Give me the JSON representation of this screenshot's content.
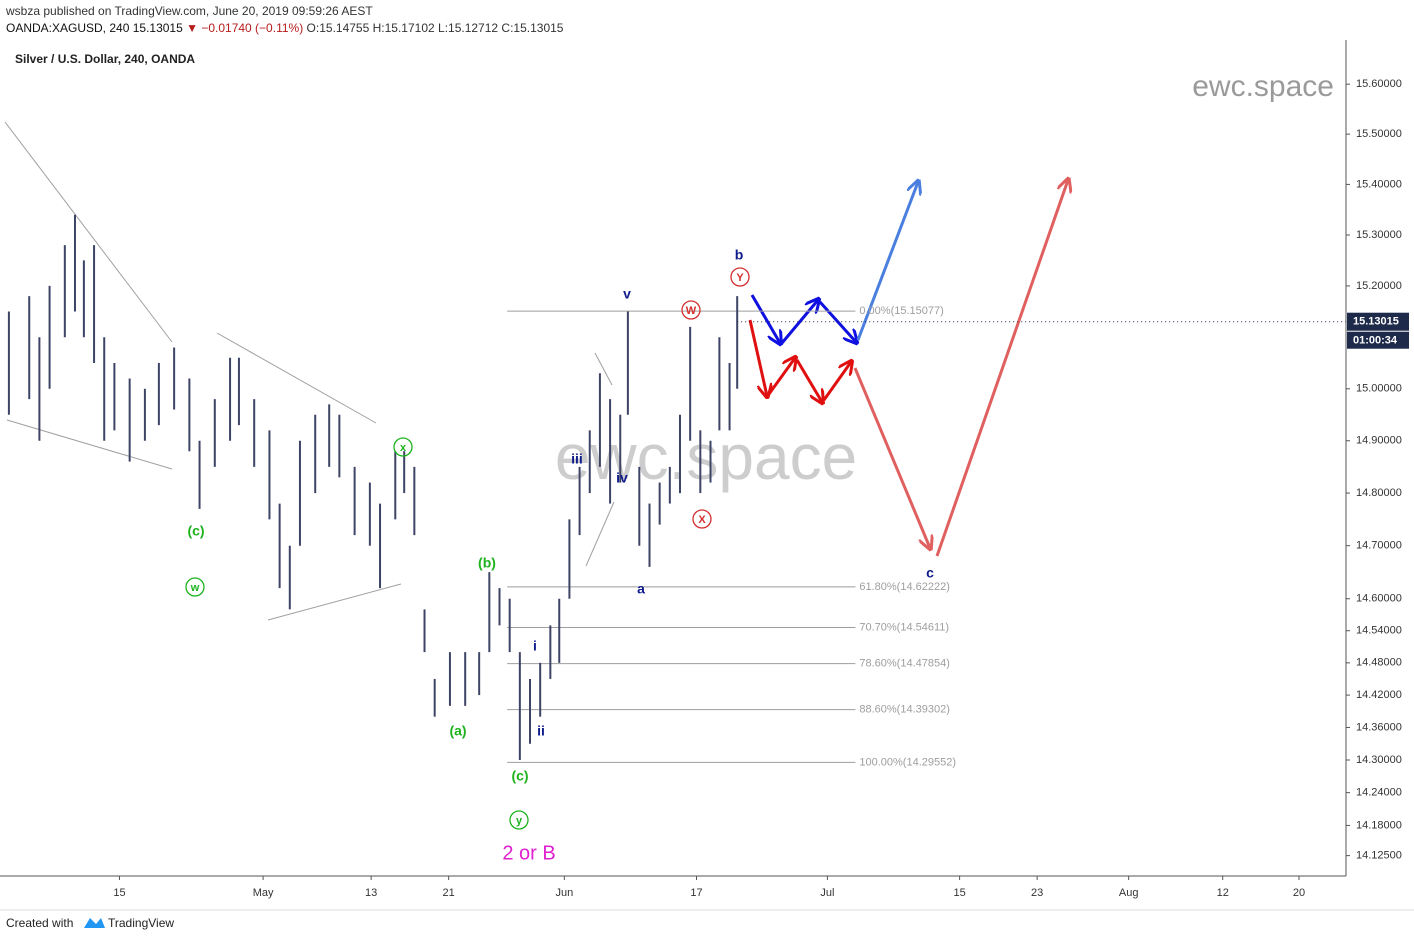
{
  "header": {
    "publisher": "wsbza published on TradingView.com, June 20, 2019 09:59:26 AEST",
    "symbol": "OANDA:XAGUSD, 240",
    "last": "15.13015",
    "change": "▼ −0.01740 (−0.11%)",
    "open": "O:15.14755",
    "high": "H:15.17102",
    "low": "L:15.12712",
    "close": "C:15.13015"
  },
  "footer": {
    "created": "Created with",
    "brand": "TradingView"
  },
  "chart_data": {
    "type": "range_bar",
    "title": "Silver / U.S. Dollar, 240, OANDA",
    "watermark": "ewc.space",
    "log_scale": true,
    "xlim": [
      -9.4,
      96.5
    ],
    "ylim": [
      14.088,
      15.689
    ],
    "xticks": [
      {
        "value": 0,
        "label": "15"
      },
      {
        "value": 11.3,
        "label": "May"
      },
      {
        "value": 19.8,
        "label": "13"
      },
      {
        "value": 25.9,
        "label": "21"
      },
      {
        "value": 35,
        "label": "Jun"
      },
      {
        "value": 45.4,
        "label": "17"
      },
      {
        "value": 55.7,
        "label": "Jul"
      },
      {
        "value": 66.1,
        "label": "15"
      },
      {
        "value": 72.2,
        "label": "23"
      },
      {
        "value": 79.4,
        "label": "Aug"
      },
      {
        "value": 86.8,
        "label": "12"
      },
      {
        "value": 92.8,
        "label": "20"
      }
    ],
    "yticks": [
      {
        "value": 15.6,
        "label": "15.60000"
      },
      {
        "value": 15.5,
        "label": "15.50000"
      },
      {
        "value": 15.4,
        "label": "15.40000"
      },
      {
        "value": 15.3,
        "label": "15.30000"
      },
      {
        "value": 15.2,
        "label": "15.20000"
      },
      {
        "value": 15.0,
        "label": "15.00000"
      },
      {
        "value": 14.9,
        "label": "14.90000"
      },
      {
        "value": 14.8,
        "label": "14.80000"
      },
      {
        "value": 14.7,
        "label": "14.70000"
      },
      {
        "value": 14.6,
        "label": "14.60000"
      },
      {
        "value": 14.54,
        "label": "14.54000"
      },
      {
        "value": 14.48,
        "label": "14.48000"
      },
      {
        "value": 14.42,
        "label": "14.42000"
      },
      {
        "value": 14.36,
        "label": "14.36000"
      },
      {
        "value": 14.3,
        "label": "14.30000"
      },
      {
        "value": 14.24,
        "label": "14.24000"
      },
      {
        "value": 14.18,
        "label": "14.18000"
      },
      {
        "value": 14.125,
        "label": "14.12500"
      }
    ],
    "last_price": 15.13015,
    "countdown": "01:00:34",
    "bars": {
      "color": "#3e4466",
      "x": [
        -8.7,
        -7.1,
        -6.3,
        -5.5,
        -4.3,
        -3.5,
        -2.8,
        -2.0,
        -1.2,
        -0.4,
        0.8,
        2.0,
        3.1,
        4.3,
        5.5,
        6.3,
        7.5,
        8.7,
        9.4,
        10.6,
        11.8,
        12.6,
        13.4,
        14.2,
        15.4,
        16.5,
        17.3,
        18.5,
        19.7,
        20.5,
        21.7,
        22.4,
        23.2,
        24.0,
        24.8,
        26.0,
        27.2,
        28.3,
        29.1,
        29.9,
        30.7,
        31.5,
        32.3,
        33.1,
        33.9,
        34.6,
        35.4,
        36.2,
        37.0,
        37.8,
        38.6,
        39.4,
        40.0,
        40.9,
        41.7,
        42.5,
        43.3,
        44.1,
        44.9,
        45.7,
        46.5,
        47.2,
        48.0,
        48.6
      ],
      "high": [
        15.15,
        15.18,
        15.1,
        15.2,
        15.28,
        15.34,
        15.25,
        15.28,
        15.1,
        15.05,
        15.02,
        15.0,
        15.05,
        15.08,
        15.02,
        14.9,
        14.98,
        15.06,
        15.06,
        14.98,
        14.92,
        14.78,
        14.7,
        14.9,
        14.95,
        14.97,
        14.95,
        14.85,
        14.82,
        14.78,
        14.88,
        14.88,
        14.85,
        14.58,
        14.45,
        14.5,
        14.5,
        14.5,
        14.65,
        14.62,
        14.6,
        14.5,
        14.45,
        14.48,
        14.55,
        14.6,
        14.75,
        14.85,
        14.92,
        15.03,
        14.98,
        14.95,
        15.15,
        14.85,
        14.78,
        14.82,
        14.85,
        14.95,
        15.12,
        14.92,
        14.9,
        15.1,
        15.05,
        15.18
      ],
      "low": [
        14.95,
        14.98,
        14.9,
        15.0,
        15.1,
        15.15,
        15.1,
        15.05,
        14.9,
        14.92,
        14.86,
        14.9,
        14.93,
        14.96,
        14.88,
        14.77,
        14.85,
        14.9,
        14.93,
        14.85,
        14.75,
        14.62,
        14.58,
        14.7,
        14.8,
        14.85,
        14.83,
        14.72,
        14.7,
        14.62,
        14.75,
        14.8,
        14.72,
        14.5,
        14.38,
        14.4,
        14.4,
        14.42,
        14.5,
        14.55,
        14.5,
        14.3,
        14.33,
        14.38,
        14.45,
        14.48,
        14.6,
        14.72,
        14.8,
        14.85,
        14.78,
        14.82,
        14.95,
        14.7,
        14.66,
        14.74,
        14.78,
        14.8,
        14.9,
        14.8,
        14.82,
        14.92,
        14.92,
        15.0
      ]
    },
    "fib_levels": {
      "color": "#9e9e9e",
      "x": [
        30.5,
        57.9
      ],
      "levels": [
        {
          "value": 15.15077,
          "label": "0.00%(15.15077)"
        },
        {
          "value": 14.62222,
          "label": "61.80%(14.62222)"
        },
        {
          "value": 14.54611,
          "label": "70.70%(14.54611)"
        },
        {
          "value": 14.47854,
          "label": "78.60%(14.47854)"
        },
        {
          "value": 14.39302,
          "label": "88.60%(14.39302)"
        },
        {
          "value": 14.29552,
          "label": "100.00%(14.29552)"
        }
      ]
    },
    "annotations": [
      {
        "text": "b",
        "color": "#101c8c"
      },
      {
        "text": "Y",
        "color": "#d32f2f",
        "circled": true
      },
      {
        "text": "v",
        "color": "#101c8c"
      },
      {
        "text": "W",
        "color": "#d32f2f",
        "circled": true
      },
      {
        "text": "iii",
        "color": "#101c8c"
      },
      {
        "text": "iv",
        "color": "#101c8c"
      },
      {
        "text": "X",
        "color": "#d32f2f",
        "circled": true
      },
      {
        "text": "a",
        "color": "#101c8c"
      },
      {
        "text": "c",
        "color": "#101c8c"
      },
      {
        "text": "x",
        "color": "#1db31d",
        "circled": true
      },
      {
        "text": "(c)",
        "color": "#1db31d"
      },
      {
        "text": "w",
        "color": "#1db31d",
        "circled": true
      },
      {
        "text": "(b)",
        "color": "#1db31d"
      },
      {
        "text": "i",
        "color": "#101c8c"
      },
      {
        "text": "(a)",
        "color": "#1db31d"
      },
      {
        "text": "ii",
        "color": "#101c8c"
      },
      {
        "text": "(c)",
        "color": "#1db31d"
      },
      {
        "text": "y",
        "color": "#1db31d",
        "circled": true
      },
      {
        "text": "2 or B",
        "color": "#e020d0"
      }
    ]
  }
}
